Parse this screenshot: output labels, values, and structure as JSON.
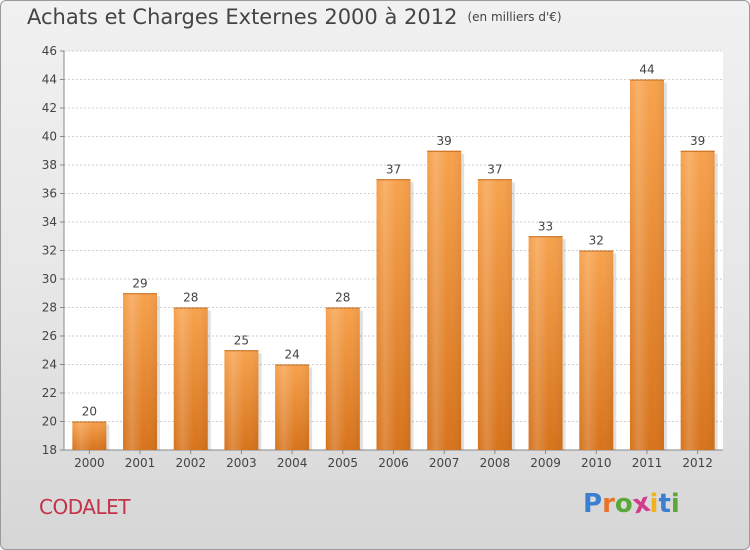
{
  "chart_data": {
    "type": "bar",
    "title": "Achats et Charges Externes 2000 à 2012",
    "unit_note": "(en milliers d'€)",
    "categories": [
      "2000",
      "2001",
      "2002",
      "2003",
      "2004",
      "2005",
      "2006",
      "2007",
      "2008",
      "2009",
      "2010",
      "2011",
      "2012"
    ],
    "values": [
      20,
      29,
      28,
      25,
      24,
      28,
      37,
      39,
      37,
      33,
      32,
      44,
      39
    ],
    "ylim": [
      18,
      46
    ],
    "yticks": [
      18,
      20,
      22,
      24,
      26,
      28,
      30,
      32,
      34,
      36,
      38,
      40,
      42,
      44,
      46
    ],
    "grid": true,
    "bar_color": "#f0923c"
  },
  "footer": {
    "commune": "CODALET",
    "logo_letters": [
      "P",
      "r",
      "o",
      "x",
      "i",
      "t",
      "i"
    ],
    "logo_colors": [
      "#3a7fd0",
      "#e8742b",
      "#5aa73a",
      "#d23a8a",
      "#f0b21e",
      "#3a7fd0",
      "#5aa73a"
    ]
  }
}
